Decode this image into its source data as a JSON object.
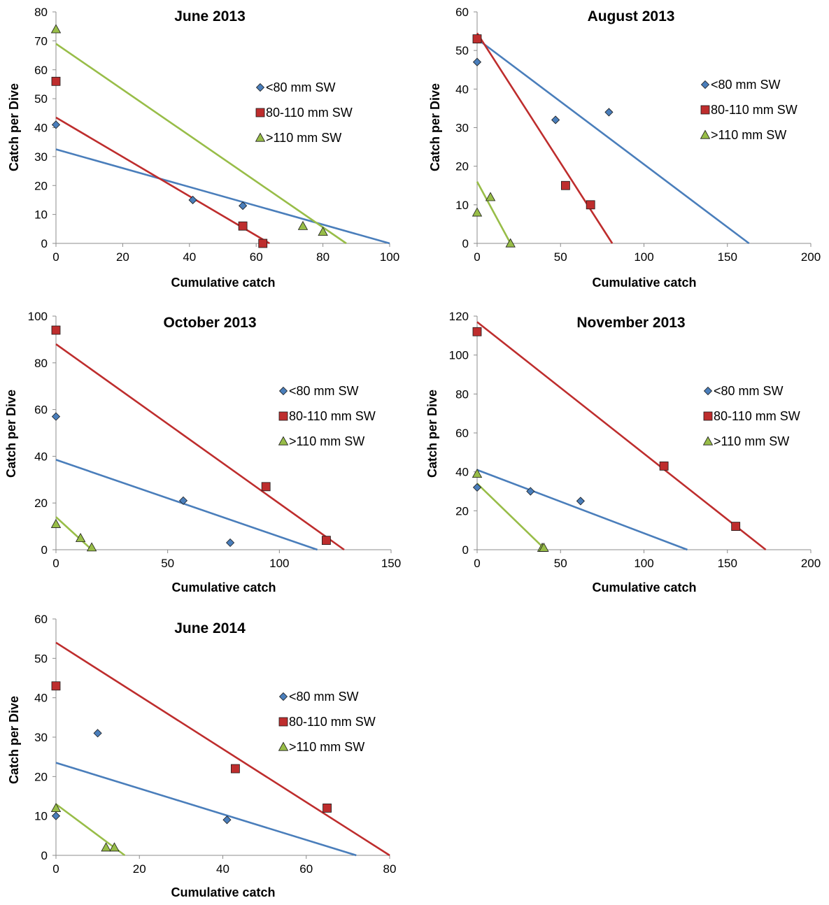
{
  "chart_data": [
    {
      "type": "scatter",
      "title": "June 2013",
      "xlabel": "Cumulative catch",
      "ylabel": "Catch per Dive",
      "xlim": [
        0,
        100
      ],
      "xticks": [
        0,
        20,
        40,
        60,
        80,
        100
      ],
      "ylim": [
        0,
        80
      ],
      "yticks": [
        0,
        10,
        20,
        30,
        40,
        50,
        60,
        70,
        80
      ],
      "series": [
        {
          "name": "<80 mm SW",
          "color": "#4a7ebb",
          "marker": "diamond",
          "points": [
            [
              0,
              41
            ],
            [
              41,
              15
            ],
            [
              56,
              13
            ]
          ],
          "fit": [
            [
              0,
              32.5
            ],
            [
              100,
              0
            ]
          ]
        },
        {
          "name": "80-110 mm SW",
          "color": "#be2d2d",
          "marker": "square",
          "points": [
            [
              0,
              56
            ],
            [
              56,
              6
            ],
            [
              62,
              0
            ]
          ],
          "fit": [
            [
              0,
              43.5
            ],
            [
              64,
              0
            ]
          ]
        },
        {
          "name": ">110 mm SW",
          "color": "#98bd48",
          "marker": "triangle",
          "points": [
            [
              0,
              74
            ],
            [
              74,
              6
            ],
            [
              80,
              4
            ]
          ],
          "fit": [
            [
              0,
              69
            ],
            [
              87,
              0
            ]
          ]
        }
      ]
    },
    {
      "type": "scatter",
      "title": "August 2013",
      "xlabel": "Cumulative catch",
      "ylabel": "Catch per Dive",
      "xlim": [
        0,
        200
      ],
      "xticks": [
        0,
        50,
        100,
        150,
        200
      ],
      "ylim": [
        0,
        60
      ],
      "yticks": [
        0,
        10,
        20,
        30,
        40,
        50,
        60
      ],
      "series": [
        {
          "name": "<80 mm SW",
          "color": "#4a7ebb",
          "marker": "diamond",
          "points": [
            [
              0,
              47
            ],
            [
              47,
              32
            ],
            [
              79,
              34
            ]
          ],
          "fit": [
            [
              0,
              53
            ],
            [
              163,
              0
            ]
          ]
        },
        {
          "name": "80-110 mm SW",
          "color": "#be2d2d",
          "marker": "square",
          "points": [
            [
              0,
              53
            ],
            [
              53,
              15
            ],
            [
              68,
              10
            ]
          ],
          "fit": [
            [
              0,
              54.5
            ],
            [
              81,
              0
            ]
          ]
        },
        {
          "name": ">110 mm SW",
          "color": "#98bd48",
          "marker": "triangle",
          "points": [
            [
              0,
              8
            ],
            [
              8,
              12
            ],
            [
              20,
              0
            ]
          ],
          "fit": [
            [
              0,
              16
            ],
            [
              20,
              0
            ]
          ]
        }
      ]
    },
    {
      "type": "scatter",
      "title": "October 2013",
      "xlabel": "Cumulative catch",
      "ylabel": "Catch per Dive",
      "xlim": [
        0,
        150
      ],
      "xticks": [
        0,
        50,
        100,
        150
      ],
      "ylim": [
        0,
        100
      ],
      "yticks": [
        0,
        20,
        40,
        60,
        80,
        100
      ],
      "series": [
        {
          "name": "<80 mm SW",
          "color": "#4a7ebb",
          "marker": "diamond",
          "points": [
            [
              0,
              57
            ],
            [
              57,
              21
            ],
            [
              78,
              3
            ]
          ],
          "fit": [
            [
              0,
              38.5
            ],
            [
              117,
              0
            ]
          ]
        },
        {
          "name": "80-110 mm SW",
          "color": "#be2d2d",
          "marker": "square",
          "points": [
            [
              0,
              94
            ],
            [
              94,
              27
            ],
            [
              121,
              4
            ]
          ],
          "fit": [
            [
              0,
              88
            ],
            [
              129,
              0
            ]
          ]
        },
        {
          "name": ">110 mm SW",
          "color": "#98bd48",
          "marker": "triangle",
          "points": [
            [
              0,
              11
            ],
            [
              11,
              5
            ],
            [
              16,
              1
            ]
          ],
          "fit": [
            [
              0,
              14
            ],
            [
              16,
              0
            ]
          ]
        }
      ]
    },
    {
      "type": "scatter",
      "title": "November 2013",
      "xlabel": "Cumulative catch",
      "ylabel": "Catch per Dive",
      "xlim": [
        0,
        200
      ],
      "xticks": [
        0,
        50,
        100,
        150,
        200
      ],
      "ylim": [
        0,
        120
      ],
      "yticks": [
        0,
        20,
        40,
        60,
        80,
        100,
        120
      ],
      "series": [
        {
          "name": "<80 mm SW",
          "color": "#4a7ebb",
          "marker": "diamond",
          "points": [
            [
              0,
              32
            ],
            [
              32,
              30
            ],
            [
              62,
              25
            ]
          ],
          "fit": [
            [
              0,
              41
            ],
            [
              126,
              0
            ]
          ]
        },
        {
          "name": "80-110 mm SW",
          "color": "#be2d2d",
          "marker": "square",
          "points": [
            [
              0,
              112
            ],
            [
              112,
              43
            ],
            [
              155,
              12
            ]
          ],
          "fit": [
            [
              0,
              117
            ],
            [
              173,
              0
            ]
          ]
        },
        {
          "name": ">110 mm SW",
          "color": "#98bd48",
          "marker": "triangle",
          "points": [
            [
              0,
              39
            ],
            [
              39,
              1
            ],
            [
              40,
              1
            ]
          ],
          "fit": [
            [
              0,
              34
            ],
            [
              41,
              0
            ]
          ]
        }
      ]
    },
    {
      "type": "scatter",
      "title": "June 2014",
      "xlabel": "Cumulative catch",
      "ylabel": "Catch per Dive",
      "xlim": [
        0,
        80
      ],
      "xticks": [
        0,
        20,
        40,
        60,
        80
      ],
      "ylim": [
        0,
        60
      ],
      "yticks": [
        0,
        10,
        20,
        30,
        40,
        50,
        60
      ],
      "series": [
        {
          "name": "<80 mm SW",
          "color": "#4a7ebb",
          "marker": "diamond",
          "points": [
            [
              0,
              10
            ],
            [
              10,
              31
            ],
            [
              41,
              9
            ]
          ],
          "fit": [
            [
              0,
              23.5
            ],
            [
              72,
              0
            ]
          ]
        },
        {
          "name": "80-110 mm SW",
          "color": "#be2d2d",
          "marker": "square",
          "points": [
            [
              0,
              43
            ],
            [
              43,
              22
            ],
            [
              65,
              12
            ]
          ],
          "fit": [
            [
              0,
              54
            ],
            [
              80,
              0
            ]
          ]
        },
        {
          "name": ">110 mm SW",
          "color": "#98bd48",
          "marker": "triangle",
          "points": [
            [
              0,
              12
            ],
            [
              12,
              2
            ],
            [
              14,
              2
            ]
          ],
          "fit": [
            [
              0,
              13
            ],
            [
              16.5,
              0
            ]
          ]
        }
      ]
    }
  ]
}
